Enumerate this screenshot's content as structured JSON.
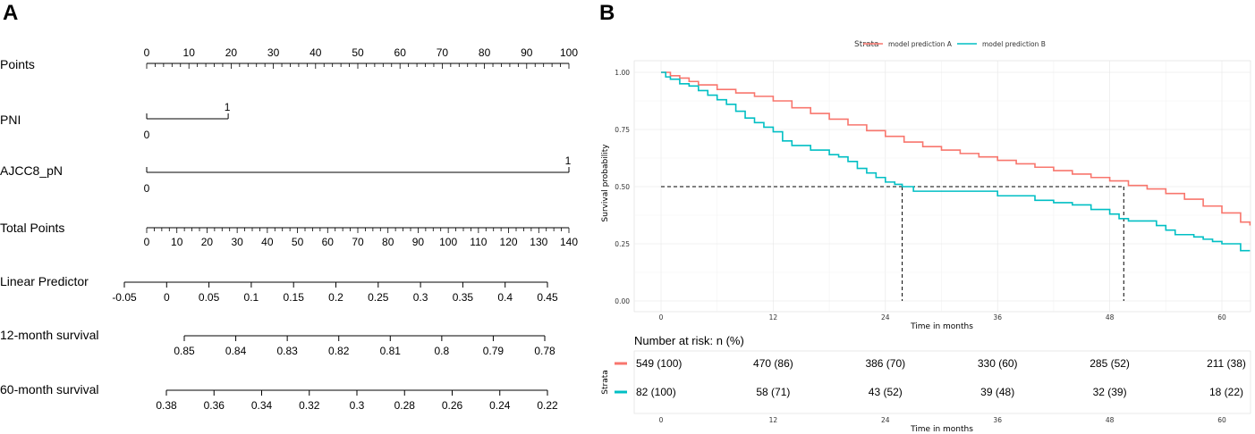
{
  "panel_a": {
    "label": "A",
    "rows": [
      {
        "label": "Points",
        "ticks": [
          "0",
          "10",
          "20",
          "30",
          "40",
          "50",
          "60",
          "70",
          "80",
          "90",
          "100"
        ],
        "max": 100
      },
      {
        "label": "PNI",
        "low": "0",
        "high": "1",
        "high_points": 19.3
      },
      {
        "label": "AJCC8_pN",
        "low": "0",
        "high": "1",
        "high_points": 100
      },
      {
        "label": "Total Points",
        "ticks": [
          "0",
          "10",
          "20",
          "30",
          "40",
          "50",
          "60",
          "70",
          "80",
          "90",
          "100",
          "110",
          "120",
          "130",
          "140"
        ],
        "max": 140
      },
      {
        "label": "Linear Predictor",
        "ticks": [
          "-0.05",
          "0",
          "0.05",
          "0.1",
          "0.15",
          "0.2",
          "0.25",
          "0.3",
          "0.35",
          "0.4",
          "0.45"
        ]
      },
      {
        "label": "12-month survival",
        "ticks": [
          "0.85",
          "0.84",
          "0.83",
          "0.82",
          "0.81",
          "0.8",
          "0.79",
          "0.78"
        ]
      },
      {
        "label": "60-month survival",
        "ticks": [
          "0.38",
          "0.36",
          "0.34",
          "0.32",
          "0.3",
          "0.28",
          "0.26",
          "0.24",
          "0.22"
        ]
      }
    ]
  },
  "panel_b": {
    "label": "B",
    "legend_title": "Strata",
    "xlabel": "Time in months",
    "ylabel": "Survival probability",
    "risk_title": "Number at risk: n (%)",
    "risk_ylabel": "Strata",
    "colors": {
      "a": "#F8766D",
      "b": "#00BFC4"
    }
  },
  "chart_data": {
    "type": "line",
    "title": "",
    "xlabel": "Time in months",
    "ylabel": "Survival probability",
    "xlim": [
      0,
      63
    ],
    "ylim": [
      0,
      1
    ],
    "xticks": [
      "0",
      "12",
      "24",
      "36",
      "48",
      "60"
    ],
    "yticks": [
      "0.00",
      "0.25",
      "0.50",
      "0.75",
      "1.00"
    ],
    "median_line": 0.5,
    "series": [
      {
        "name": "model prediction A",
        "color": "#F8766D",
        "median": 49.5,
        "x": [
          0,
          1,
          2,
          3,
          4,
          6,
          8,
          10,
          12,
          14,
          16,
          18,
          20,
          22,
          24,
          26,
          28,
          30,
          32,
          34,
          36,
          38,
          40,
          42,
          44,
          46,
          48,
          50,
          52,
          54,
          56,
          58,
          60,
          62,
          63
        ],
        "y": [
          1.0,
          0.985,
          0.975,
          0.96,
          0.945,
          0.925,
          0.91,
          0.895,
          0.875,
          0.845,
          0.82,
          0.795,
          0.77,
          0.745,
          0.72,
          0.695,
          0.675,
          0.66,
          0.645,
          0.63,
          0.615,
          0.6,
          0.585,
          0.57,
          0.555,
          0.54,
          0.525,
          0.505,
          0.49,
          0.47,
          0.445,
          0.415,
          0.385,
          0.345,
          0.33
        ]
      },
      {
        "name": "model prediction B",
        "color": "#00BFC4",
        "median": 25.8,
        "x": [
          0,
          0.5,
          1,
          2,
          3,
          4,
          5,
          6,
          7,
          8,
          9,
          10,
          11,
          12,
          13,
          14,
          16,
          18,
          19,
          20,
          21,
          22,
          23,
          24,
          25,
          25.8,
          27,
          29,
          31,
          33,
          35,
          36,
          38,
          40,
          42,
          44,
          46,
          48,
          49,
          50,
          53,
          54,
          55,
          57,
          58,
          59,
          60,
          62,
          63
        ],
        "y": [
          1.0,
          0.98,
          0.97,
          0.95,
          0.94,
          0.92,
          0.9,
          0.88,
          0.86,
          0.83,
          0.8,
          0.78,
          0.76,
          0.74,
          0.7,
          0.68,
          0.66,
          0.64,
          0.63,
          0.61,
          0.58,
          0.56,
          0.54,
          0.52,
          0.51,
          0.5,
          0.48,
          0.48,
          0.48,
          0.48,
          0.48,
          0.46,
          0.46,
          0.44,
          0.43,
          0.42,
          0.4,
          0.38,
          0.36,
          0.35,
          0.33,
          0.31,
          0.29,
          0.28,
          0.27,
          0.26,
          0.25,
          0.22,
          0.22
        ]
      }
    ]
  },
  "risk_table": {
    "times": [
      "0",
      "12",
      "24",
      "36",
      "48",
      "60"
    ],
    "rows": [
      {
        "name": "model prediction A",
        "values": [
          "549 (100)",
          "470 (86)",
          "386 (70)",
          "330 (60)",
          "285 (52)",
          "211 (38)"
        ]
      },
      {
        "name": "model prediction B",
        "values": [
          "82 (100)",
          "58 (71)",
          "43 (52)",
          "39 (48)",
          "32 (39)",
          "18 (22)"
        ]
      }
    ]
  }
}
